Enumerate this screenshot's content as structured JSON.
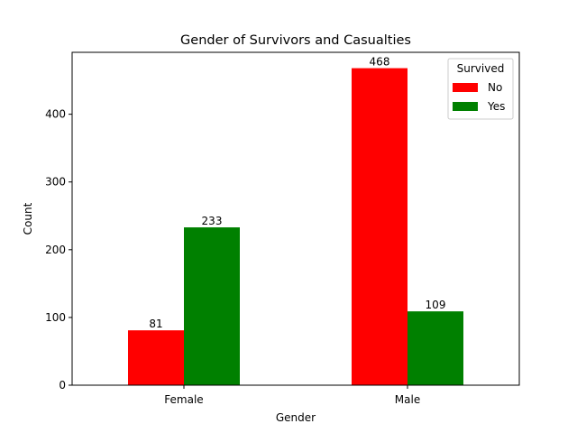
{
  "chart_data": {
    "type": "bar",
    "title": "Gender of Survivors and Casualties",
    "xlabel": "Gender",
    "ylabel": "Count",
    "categories": [
      "Female",
      "Male"
    ],
    "series": [
      {
        "name": "No",
        "values": [
          81,
          468
        ],
        "color": "#ff0000"
      },
      {
        "name": "Yes",
        "values": [
          233,
          109
        ],
        "color": "#008000"
      }
    ],
    "ylim": [
      0,
      491.4
    ],
    "yticks": [
      0,
      100,
      200,
      300,
      400
    ],
    "data_labels": true,
    "grid": false,
    "legend": {
      "title": "Survived",
      "placement": "top-right"
    }
  }
}
